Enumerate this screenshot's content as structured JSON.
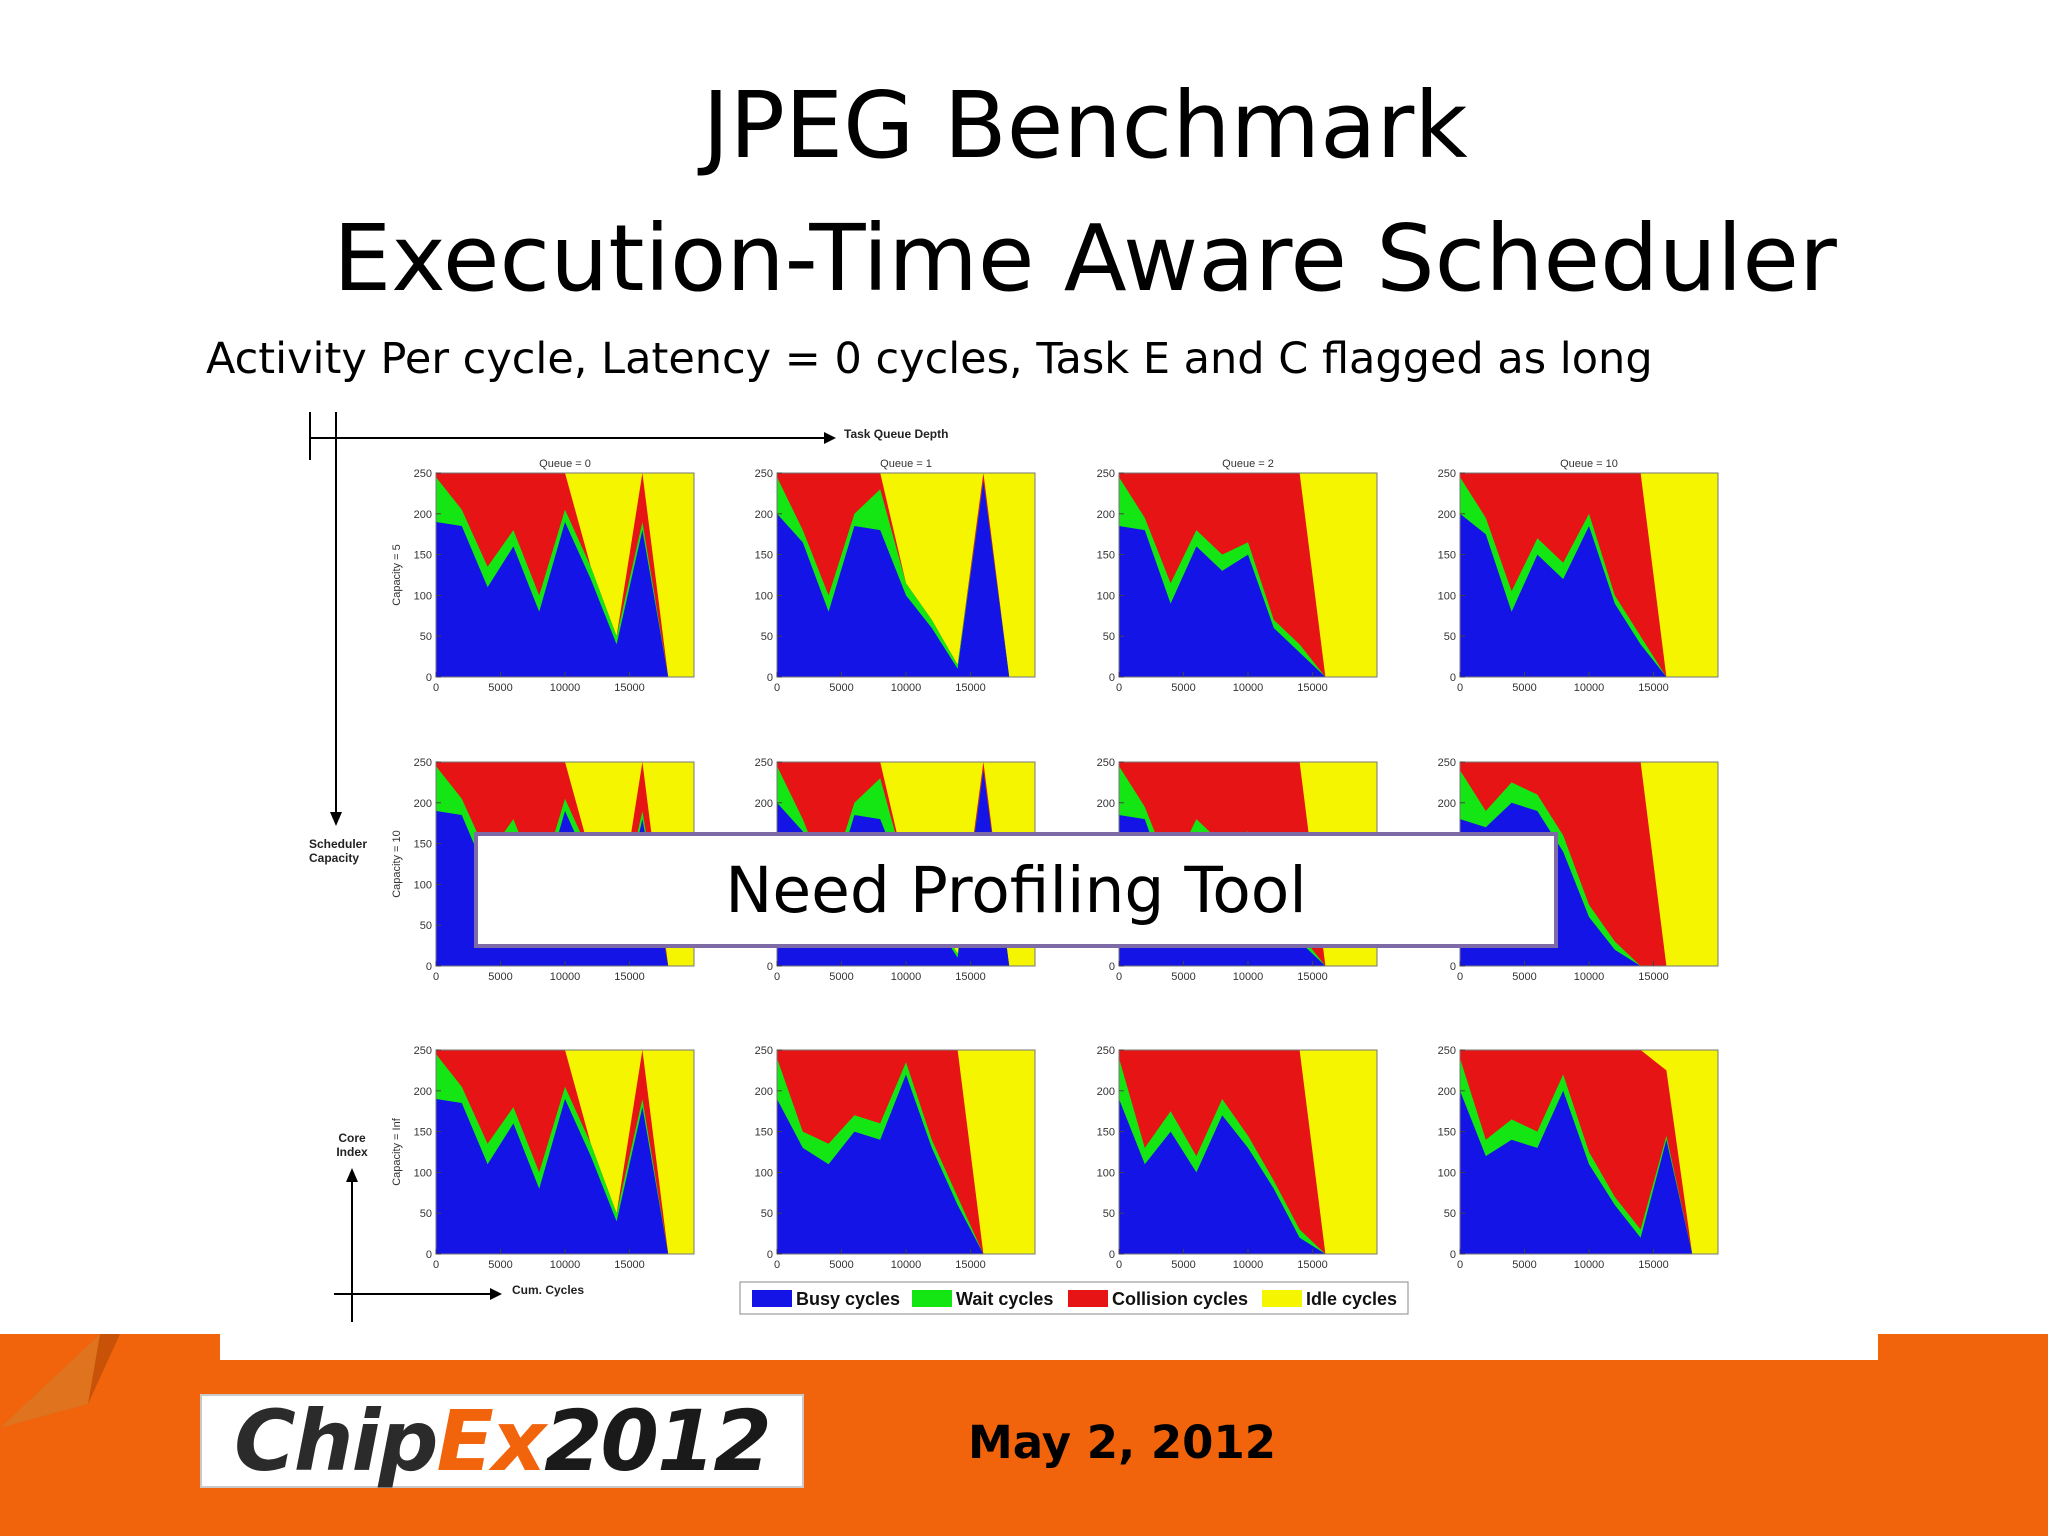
{
  "slide": {
    "title_line1": "JPEG Benchmark",
    "title_line2": "Execution-Time Aware Scheduler",
    "subtitle": "Activity Per cycle, Latency = 0 cycles, Task E and C flagged as long",
    "callout": "Need Profiling Tool",
    "date": "May 2, 2012",
    "logo": {
      "part1": "Chip",
      "part2": "Ex",
      "part3": "2012"
    }
  },
  "colors": {
    "busy": "#1414e6",
    "wait": "#14e614",
    "collision": "#e61414",
    "idle": "#f5f500",
    "footer": "#f2640c"
  },
  "figure": {
    "top_axis_label": "Task Queue Depth",
    "scheduler_axis_label": [
      "Scheduler",
      "Capacity"
    ],
    "core_axis_label": [
      "Core",
      "Index"
    ],
    "cum_axis_label": "Cum. Cycles",
    "columns": [
      "Queue = 0",
      "Queue = 1",
      "Queue = 2",
      "Queue = 10"
    ],
    "rows": [
      "Capacity = 5",
      "Capacity = 10",
      "Capacity = Inf"
    ],
    "y_ticks": [
      "0",
      "50",
      "100",
      "150",
      "200",
      "250"
    ],
    "x_ticks": [
      "0",
      "5000",
      "10000",
      "15000"
    ],
    "legend": [
      "Busy cycles",
      "Wait cycles",
      "Collision cycles",
      "Idle cycles"
    ]
  },
  "chart_data": {
    "type": "area",
    "stacking": "stacked",
    "xlim": [
      0,
      20000
    ],
    "ylim": [
      0,
      250
    ],
    "xlabel": "Cum. Cycles",
    "ylabel": "Core Index",
    "x": [
      0,
      2000,
      4000,
      6000,
      8000,
      10000,
      12000,
      14000,
      16000,
      18000,
      20000
    ],
    "series_names": [
      "Busy cycles",
      "Wait cycles",
      "Collision cycles",
      "Idle cycles"
    ],
    "panels": [
      {
        "row": "Capacity = 5",
        "column": "Queue = 0",
        "busy": [
          190,
          185,
          110,
          160,
          80,
          190,
          120,
          40,
          180,
          0,
          0
        ],
        "wait": [
          55,
          20,
          25,
          20,
          20,
          15,
          15,
          10,
          10,
          0,
          0
        ],
        "collision": [
          5,
          45,
          115,
          70,
          150,
          45,
          0,
          0,
          60,
          0,
          0
        ]
      },
      {
        "row": "Capacity = 5",
        "column": "Queue = 1",
        "busy": [
          200,
          165,
          80,
          185,
          180,
          100,
          60,
          10,
          240,
          0,
          0
        ],
        "wait": [
          45,
          15,
          20,
          15,
          50,
          15,
          10,
          5,
          0,
          0,
          0
        ],
        "collision": [
          5,
          70,
          150,
          50,
          20,
          0,
          0,
          0,
          10,
          0,
          0
        ]
      },
      {
        "row": "Capacity = 5",
        "column": "Queue = 2",
        "busy": [
          185,
          180,
          90,
          160,
          130,
          150,
          60,
          30,
          0,
          0,
          0
        ],
        "wait": [
          60,
          15,
          25,
          20,
          20,
          15,
          10,
          10,
          0,
          0,
          0
        ],
        "collision": [
          5,
          55,
          135,
          70,
          100,
          85,
          180,
          210,
          0,
          0,
          0
        ]
      },
      {
        "row": "Capacity = 5",
        "column": "Queue = 10",
        "busy": [
          200,
          175,
          80,
          150,
          120,
          185,
          90,
          40,
          0,
          0,
          0
        ],
        "wait": [
          45,
          20,
          25,
          20,
          20,
          15,
          10,
          10,
          0,
          0,
          0
        ],
        "collision": [
          5,
          55,
          145,
          80,
          110,
          50,
          150,
          200,
          0,
          0,
          0
        ]
      },
      {
        "row": "Capacity = 10",
        "column": "Queue = 0",
        "busy": [
          190,
          185,
          110,
          160,
          80,
          190,
          120,
          40,
          180,
          0,
          0
        ],
        "wait": [
          55,
          20,
          25,
          20,
          20,
          15,
          15,
          10,
          10,
          0,
          0
        ],
        "collision": [
          5,
          45,
          115,
          70,
          150,
          45,
          0,
          0,
          60,
          0,
          0
        ]
      },
      {
        "row": "Capacity = 10",
        "column": "Queue = 1",
        "busy": [
          200,
          165,
          80,
          185,
          180,
          100,
          60,
          10,
          240,
          0,
          0
        ],
        "wait": [
          45,
          15,
          20,
          15,
          50,
          15,
          10,
          5,
          0,
          0,
          0
        ],
        "collision": [
          5,
          70,
          150,
          50,
          20,
          0,
          0,
          0,
          10,
          0,
          0
        ]
      },
      {
        "row": "Capacity = 10",
        "column": "Queue = 2",
        "busy": [
          185,
          180,
          90,
          160,
          130,
          150,
          60,
          30,
          0,
          0,
          0
        ],
        "wait": [
          60,
          15,
          25,
          20,
          20,
          15,
          10,
          10,
          0,
          0,
          0
        ],
        "collision": [
          5,
          55,
          135,
          70,
          100,
          85,
          180,
          210,
          0,
          0,
          0
        ]
      },
      {
        "row": "Capacity = 10",
        "column": "Queue = 10",
        "busy": [
          180,
          170,
          200,
          190,
          140,
          60,
          20,
          0,
          0,
          0,
          0
        ],
        "wait": [
          60,
          20,
          25,
          20,
          20,
          15,
          10,
          0,
          0,
          0,
          0
        ],
        "collision": [
          10,
          60,
          25,
          40,
          90,
          175,
          220,
          250,
          0,
          0,
          0
        ]
      },
      {
        "row": "Capacity = Inf",
        "column": "Queue = 0",
        "busy": [
          190,
          185,
          110,
          160,
          80,
          190,
          120,
          40,
          180,
          0,
          0
        ],
        "wait": [
          55,
          20,
          25,
          20,
          20,
          15,
          15,
          10,
          10,
          0,
          0
        ],
        "collision": [
          5,
          45,
          115,
          70,
          150,
          45,
          0,
          0,
          60,
          0,
          0
        ]
      },
      {
        "row": "Capacity = Inf",
        "column": "Queue = 1",
        "busy": [
          190,
          130,
          110,
          150,
          140,
          220,
          130,
          60,
          0,
          0,
          0
        ],
        "wait": [
          50,
          20,
          25,
          20,
          20,
          15,
          10,
          10,
          0,
          0,
          0
        ],
        "collision": [
          10,
          100,
          115,
          80,
          90,
          15,
          110,
          180,
          0,
          0,
          0
        ]
      },
      {
        "row": "Capacity = Inf",
        "column": "Queue = 2",
        "busy": [
          190,
          110,
          150,
          100,
          170,
          130,
          80,
          20,
          0,
          0,
          0
        ],
        "wait": [
          50,
          20,
          25,
          20,
          20,
          15,
          10,
          10,
          0,
          0,
          0
        ],
        "collision": [
          10,
          120,
          75,
          130,
          60,
          105,
          160,
          220,
          0,
          0,
          0
        ]
      },
      {
        "row": "Capacity = Inf",
        "column": "Queue = 10",
        "busy": [
          200,
          120,
          140,
          130,
          200,
          110,
          60,
          20,
          140,
          0,
          0
        ],
        "wait": [
          40,
          20,
          25,
          20,
          20,
          15,
          10,
          10,
          5,
          0,
          0
        ],
        "collision": [
          10,
          110,
          85,
          100,
          30,
          125,
          180,
          220,
          80,
          0,
          0
        ]
      }
    ]
  }
}
